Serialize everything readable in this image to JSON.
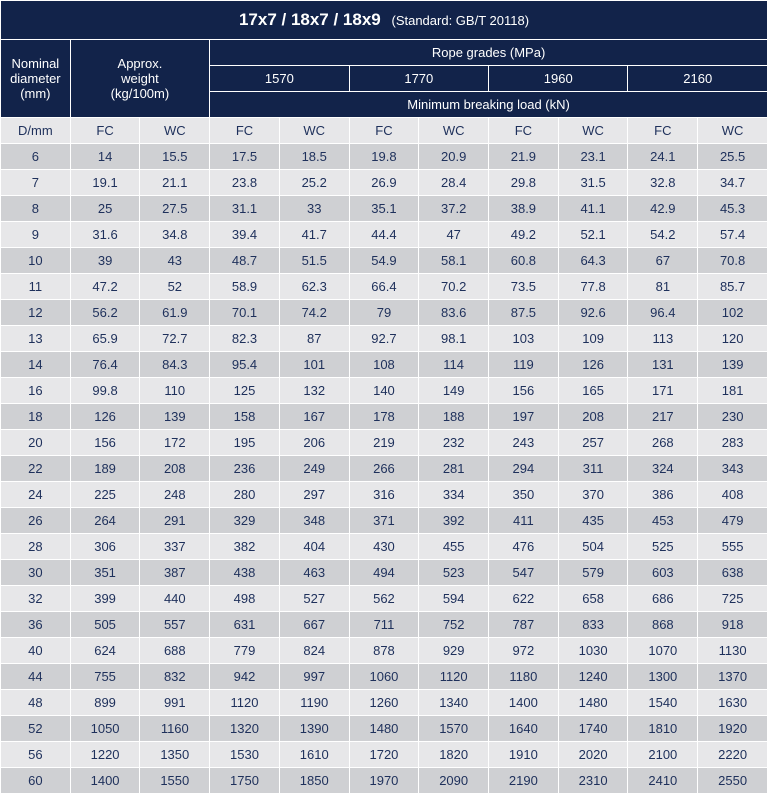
{
  "title": "17x7 / 18x7 / 18x9",
  "standard": "(Standard: GB/T 20118)",
  "colors": {
    "header_bg": "#12234a",
    "header_text": "#ffffff",
    "row_even_bg": "#cfd0d3",
    "row_odd_bg": "#e7e7e9",
    "cell_text": "#1e305b",
    "border": "#ffffff"
  },
  "headers": {
    "nominal_diameter": "Nominal diameter (mm)",
    "approx_weight": "Approx. weight (kg/100m)",
    "rope_grades": "Rope grades (MPa)",
    "min_break": "Minimum breaking load (kN)",
    "grade_labels": [
      "1570",
      "1770",
      "1960",
      "2160"
    ],
    "col_labels": [
      "D/mm",
      "FC",
      "WC",
      "FC",
      "WC",
      "FC",
      "WC",
      "FC",
      "WC",
      "FC",
      "WC"
    ]
  },
  "rows": [
    [
      "6",
      "14",
      "15.5",
      "17.5",
      "18.5",
      "19.8",
      "20.9",
      "21.9",
      "23.1",
      "24.1",
      "25.5"
    ],
    [
      "7",
      "19.1",
      "21.1",
      "23.8",
      "25.2",
      "26.9",
      "28.4",
      "29.8",
      "31.5",
      "32.8",
      "34.7"
    ],
    [
      "8",
      "25",
      "27.5",
      "31.1",
      "33",
      "35.1",
      "37.2",
      "38.9",
      "41.1",
      "42.9",
      "45.3"
    ],
    [
      "9",
      "31.6",
      "34.8",
      "39.4",
      "41.7",
      "44.4",
      "47",
      "49.2",
      "52.1",
      "54.2",
      "57.4"
    ],
    [
      "10",
      "39",
      "43",
      "48.7",
      "51.5",
      "54.9",
      "58.1",
      "60.8",
      "64.3",
      "67",
      "70.8"
    ],
    [
      "11",
      "47.2",
      "52",
      "58.9",
      "62.3",
      "66.4",
      "70.2",
      "73.5",
      "77.8",
      "81",
      "85.7"
    ],
    [
      "12",
      "56.2",
      "61.9",
      "70.1",
      "74.2",
      "79",
      "83.6",
      "87.5",
      "92.6",
      "96.4",
      "102"
    ],
    [
      "13",
      "65.9",
      "72.7",
      "82.3",
      "87",
      "92.7",
      "98.1",
      "103",
      "109",
      "113",
      "120"
    ],
    [
      "14",
      "76.4",
      "84.3",
      "95.4",
      "101",
      "108",
      "114",
      "119",
      "126",
      "131",
      "139"
    ],
    [
      "16",
      "99.8",
      "110",
      "125",
      "132",
      "140",
      "149",
      "156",
      "165",
      "171",
      "181"
    ],
    [
      "18",
      "126",
      "139",
      "158",
      "167",
      "178",
      "188",
      "197",
      "208",
      "217",
      "230"
    ],
    [
      "20",
      "156",
      "172",
      "195",
      "206",
      "219",
      "232",
      "243",
      "257",
      "268",
      "283"
    ],
    [
      "22",
      "189",
      "208",
      "236",
      "249",
      "266",
      "281",
      "294",
      "311",
      "324",
      "343"
    ],
    [
      "24",
      "225",
      "248",
      "280",
      "297",
      "316",
      "334",
      "350",
      "370",
      "386",
      "408"
    ],
    [
      "26",
      "264",
      "291",
      "329",
      "348",
      "371",
      "392",
      "411",
      "435",
      "453",
      "479"
    ],
    [
      "28",
      "306",
      "337",
      "382",
      "404",
      "430",
      "455",
      "476",
      "504",
      "525",
      "555"
    ],
    [
      "30",
      "351",
      "387",
      "438",
      "463",
      "494",
      "523",
      "547",
      "579",
      "603",
      "638"
    ],
    [
      "32",
      "399",
      "440",
      "498",
      "527",
      "562",
      "594",
      "622",
      "658",
      "686",
      "725"
    ],
    [
      "36",
      "505",
      "557",
      "631",
      "667",
      "711",
      "752",
      "787",
      "833",
      "868",
      "918"
    ],
    [
      "40",
      "624",
      "688",
      "779",
      "824",
      "878",
      "929",
      "972",
      "1030",
      "1070",
      "1130"
    ],
    [
      "44",
      "755",
      "832",
      "942",
      "997",
      "1060",
      "1120",
      "1180",
      "1240",
      "1300",
      "1370"
    ],
    [
      "48",
      "899",
      "991",
      "1120",
      "1190",
      "1260",
      "1340",
      "1400",
      "1480",
      "1540",
      "1630"
    ],
    [
      "52",
      "1050",
      "1160",
      "1320",
      "1390",
      "1480",
      "1570",
      "1640",
      "1740",
      "1810",
      "1920"
    ],
    [
      "56",
      "1220",
      "1350",
      "1530",
      "1610",
      "1720",
      "1820",
      "1910",
      "2020",
      "2100",
      "2220"
    ],
    [
      "60",
      "1400",
      "1550",
      "1750",
      "1850",
      "1970",
      "2090",
      "2190",
      "2310",
      "2410",
      "2550"
    ]
  ]
}
